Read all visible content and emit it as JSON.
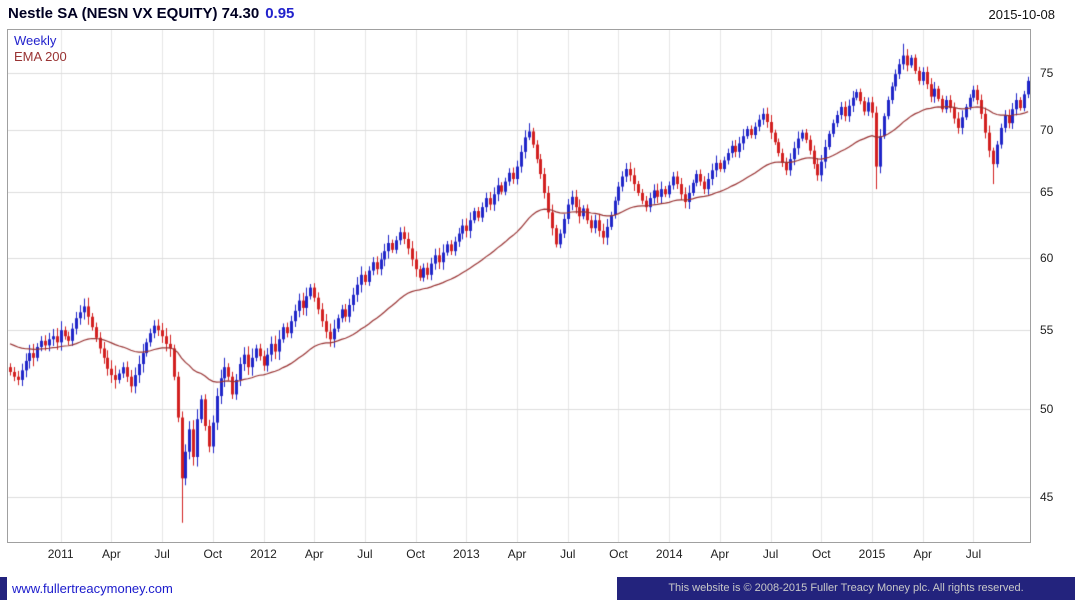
{
  "header": {
    "title": "Nestle SA (NESN VX EQUITY) 74.30",
    "change": "0.95",
    "date": "2015-10-08"
  },
  "legend": {
    "series_label": "Weekly",
    "ema_label": "EMA 200"
  },
  "footer": {
    "link": "www.fullertreacymoney.com",
    "copyright": "This website is © 2008-2015 Fuller Treacy Money plc. All rights reserved."
  },
  "colors": {
    "up_candle": "#2026c8",
    "down_candle": "#d22020",
    "ema_line": "#993333",
    "grid": "#dddddd",
    "grid_vertical": "#e6e6e6",
    "change_text": "#2222cc",
    "footer_band": "#23237d"
  },
  "chart_data": {
    "type": "candlestick",
    "interval": "weekly",
    "title": "Nestle SA (NESN VX EQUITY)",
    "last_price": 74.3,
    "change": 0.95,
    "y_scale": "log",
    "y_domain": [
      42.6,
      79.0
    ],
    "y_ticks": [
      45,
      50,
      55,
      60,
      65,
      70,
      75
    ],
    "y_axis_side": "right",
    "grid": true,
    "legend_position": "top-left",
    "x_ticks": [
      {
        "label": "2011",
        "week": 13
      },
      {
        "label": "Apr",
        "week": 26
      },
      {
        "label": "Jul",
        "week": 39
      },
      {
        "label": "Oct",
        "week": 52
      },
      {
        "label": "2012",
        "week": 65
      },
      {
        "label": "Apr",
        "week": 78
      },
      {
        "label": "Jul",
        "week": 91
      },
      {
        "label": "Oct",
        "week": 104
      },
      {
        "label": "2013",
        "week": 117
      },
      {
        "label": "Apr",
        "week": 130
      },
      {
        "label": "Jul",
        "week": 143
      },
      {
        "label": "Oct",
        "week": 156
      },
      {
        "label": "2014",
        "week": 169
      },
      {
        "label": "Apr",
        "week": 182
      },
      {
        "label": "Jul",
        "week": 195
      },
      {
        "label": "Oct",
        "week": 208
      },
      {
        "label": "2015",
        "week": 221
      },
      {
        "label": "Apr",
        "week": 234
      },
      {
        "label": "Jul",
        "week": 247
      }
    ],
    "closes": [
      52.3,
      52.0,
      51.8,
      52.4,
      53.0,
      53.5,
      53.2,
      53.9,
      54.3,
      54.0,
      54.4,
      54.6,
      54.2,
      55.0,
      54.6,
      54.3,
      55.1,
      55.8,
      56.2,
      56.6,
      55.9,
      55.2,
      54.5,
      53.8,
      53.2,
      52.5,
      52.1,
      51.8,
      52.2,
      52.6,
      52.0,
      51.4,
      52.1,
      52.8,
      53.5,
      54.2,
      54.8,
      55.3,
      55.0,
      54.6,
      54.1,
      53.8,
      52.0,
      49.5,
      46.0,
      47.5,
      48.8,
      47.2,
      49.4,
      50.6,
      49.0,
      47.8,
      49.2,
      50.8,
      51.9,
      52.6,
      52.0,
      50.9,
      51.8,
      52.8,
      53.4,
      52.6,
      53.2,
      53.8,
      53.3,
      52.7,
      53.4,
      54.1,
      53.6,
      54.4,
      55.2,
      54.8,
      55.6,
      56.3,
      57.0,
      56.5,
      57.3,
      57.9,
      57.2,
      56.4,
      55.6,
      54.9,
      54.4,
      55.1,
      55.8,
      56.4,
      55.9,
      56.7,
      57.4,
      58.1,
      58.8,
      58.3,
      59.1,
      59.7,
      59.2,
      59.9,
      60.5,
      61.1,
      60.6,
      61.3,
      61.9,
      61.4,
      60.7,
      59.9,
      59.2,
      58.6,
      59.3,
      58.8,
      59.6,
      60.2,
      59.7,
      60.4,
      61.0,
      60.5,
      61.2,
      61.8,
      62.4,
      62.0,
      62.8,
      63.5,
      63.0,
      63.8,
      64.5,
      64.0,
      64.8,
      65.5,
      65.0,
      65.8,
      66.5,
      66.0,
      67.0,
      68.2,
      69.4,
      69.9,
      68.8,
      67.6,
      66.4,
      64.9,
      63.4,
      62.2,
      61.0,
      61.8,
      62.9,
      64.0,
      64.6,
      63.8,
      63.1,
      63.7,
      62.8,
      62.2,
      62.8,
      62.0,
      61.5,
      62.3,
      63.2,
      64.3,
      65.4,
      66.2,
      66.8,
      66.3,
      65.6,
      64.9,
      64.3,
      63.8,
      64.5,
      65.1,
      64.6,
      65.2,
      64.8,
      65.5,
      66.2,
      65.6,
      64.8,
      64.2,
      64.9,
      65.7,
      66.4,
      65.8,
      65.2,
      66.0,
      66.7,
      67.3,
      66.8,
      67.5,
      68.1,
      68.7,
      68.2,
      68.9,
      69.5,
      70.1,
      69.6,
      70.3,
      70.9,
      71.4,
      70.7,
      69.8,
      69.0,
      68.1,
      67.3,
      66.7,
      67.6,
      68.5,
      69.3,
      69.8,
      69.2,
      68.3,
      67.2,
      66.3,
      67.4,
      68.6,
      69.7,
      70.6,
      71.3,
      72.0,
      71.2,
      72.1,
      72.8,
      73.3,
      72.5,
      71.6,
      72.4,
      71.5,
      67.0,
      69.5,
      71.2,
      72.6,
      73.8,
      74.9,
      75.8,
      76.6,
      75.7,
      76.4,
      75.2,
      74.3,
      75.1,
      74.0,
      72.9,
      73.6,
      72.7,
      71.8,
      72.6,
      71.9,
      71.0,
      70.2,
      71.1,
      72.0,
      72.8,
      73.5,
      72.6,
      71.4,
      69.8,
      68.3,
      67.2,
      68.8,
      70.2,
      71.3,
      70.6,
      71.8,
      72.6,
      71.9,
      73.1,
      74.3
    ],
    "wick_overrides": {
      "44": {
        "low": 43.6
      },
      "133": {
        "high": 70.6
      },
      "222": {
        "low": 65.2
      },
      "229": {
        "high": 77.7
      },
      "252": {
        "low": 65.6
      }
    },
    "ema_period_weeks": 40,
    "ema_seed": 54.2
  }
}
